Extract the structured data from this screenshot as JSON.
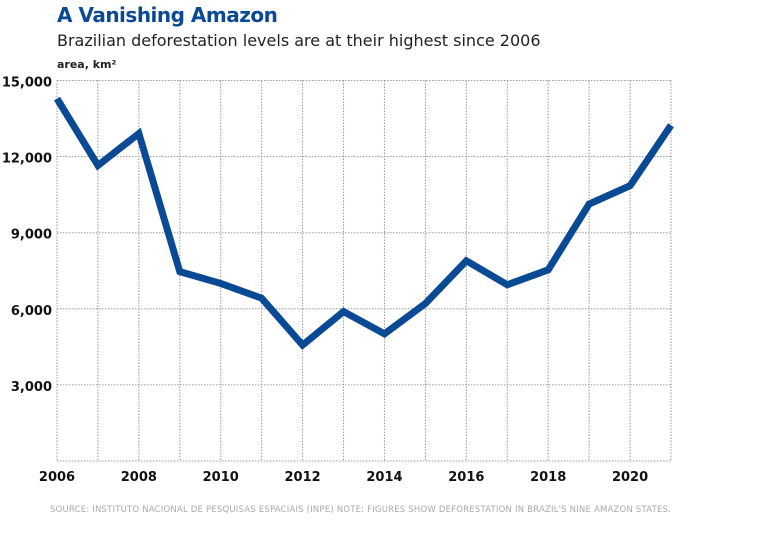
{
  "chart_data": {
    "type": "line",
    "title": "A Vanishing Amazon",
    "subtitle": "Brazilian deforestation levels are at their highest since 2006",
    "ylabel": "area, km²",
    "x": [
      2006,
      2007,
      2008,
      2009,
      2010,
      2011,
      2012,
      2013,
      2014,
      2015,
      2016,
      2017,
      2018,
      2019,
      2020,
      2021
    ],
    "values": [
      14286,
      11651,
      12911,
      7464,
      7000,
      6418,
      4571,
      5891,
      5012,
      6207,
      7893,
      6947,
      7536,
      10129,
      10851,
      13235
    ],
    "xlim": [
      2006,
      2021
    ],
    "ylim": [
      0,
      15000
    ],
    "xticks": [
      "2006",
      "2008",
      "2010",
      "2012",
      "2014",
      "2016",
      "2018",
      "2020"
    ],
    "yticks": [
      "3,000",
      "6,000",
      "9,000",
      "12,000",
      "15,000"
    ],
    "grid": true,
    "line_color": "#0a4a94",
    "source": "SOURCE: INSTITUTO NACIONAL DE PESQUISAS ESPACIAIS (INPE) NOTE: FIGURES SHOW DEFORESTATION IN BRAZIL'S NINE AMAZON STATES."
  }
}
